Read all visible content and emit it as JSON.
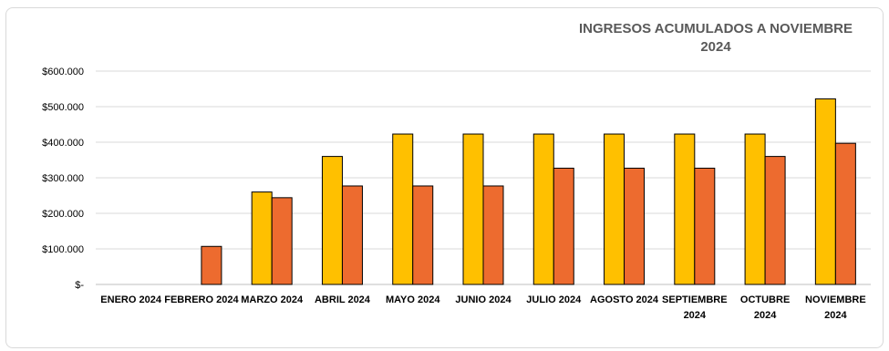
{
  "chart_data": {
    "type": "bar",
    "title_lines": [
      "INGRESOS ACUMULADOS A NOVIEMBRE",
      "2024"
    ],
    "categories": [
      [
        "ENERO 2024"
      ],
      [
        "FEBRERO 2024"
      ],
      [
        "MARZO 2024"
      ],
      [
        "ABRIL 2024"
      ],
      [
        "MAYO 2024"
      ],
      [
        "JUNIO 2024"
      ],
      [
        "JULIO 2024"
      ],
      [
        "AGOSTO 2024"
      ],
      [
        "SEPTIEMBRE",
        "2024"
      ],
      [
        "OCTUBRE",
        "2024"
      ],
      [
        "NOVIEMBRE",
        "2024"
      ]
    ],
    "series": [
      {
        "color": "#FFC000",
        "values": [
          0,
          0,
          260000,
          360000,
          423000,
          423000,
          423000,
          423000,
          423000,
          423000,
          522000
        ]
      },
      {
        "color": "#ED6B2F",
        "values": [
          0,
          107000,
          244000,
          277000,
          277000,
          277000,
          327000,
          327000,
          327000,
          360000,
          397000
        ]
      }
    ],
    "ylim": [
      0,
      600000
    ],
    "y_ticks": [
      {
        "value": 0,
        "label": "$-"
      },
      {
        "value": 100000,
        "label": "$100.000"
      },
      {
        "value": 200000,
        "label": "$200.000"
      },
      {
        "value": 300000,
        "label": "$300.000"
      },
      {
        "value": 400000,
        "label": "$400.000"
      },
      {
        "value": 500000,
        "label": "$500.000"
      },
      {
        "value": 600000,
        "label": "$600.000"
      }
    ],
    "grid": true,
    "legend": "none"
  }
}
